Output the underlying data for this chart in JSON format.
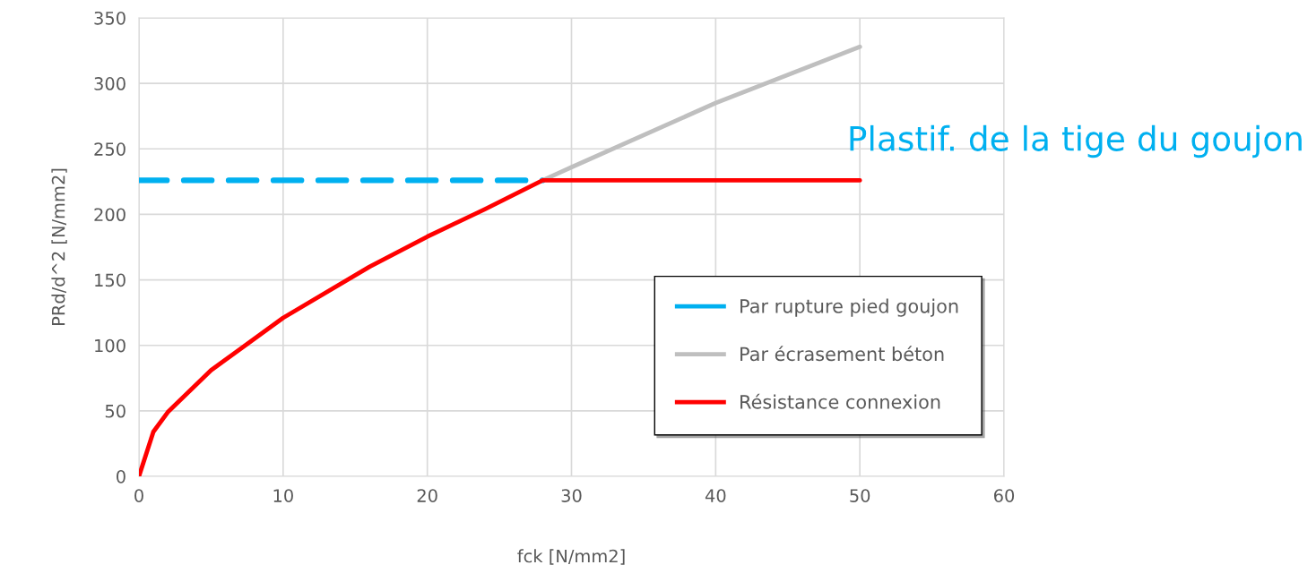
{
  "chart_data": {
    "type": "line",
    "xlabel": "fck [N/mm2]",
    "ylabel": "PRd/d^2 [N/mm2]",
    "xlim": [
      0,
      60
    ],
    "xticks": [
      0,
      10,
      20,
      30,
      40,
      50,
      60
    ],
    "ylim": [
      0,
      350
    ],
    "yticks": [
      0,
      50,
      100,
      150,
      200,
      250,
      300,
      350
    ],
    "grid": true,
    "legend": "bottom right",
    "marker": "none",
    "annotations": [
      "Plastif. de la tige du goujon"
    ],
    "series": [
      {
        "name": "Par rupture pied goujon",
        "color": "#00b0f0",
        "line_style": "dashed",
        "x": [
          0,
          28
        ],
        "values": [
          226,
          226
        ]
      },
      {
        "name": "Par écrasement béton",
        "color": "#bfbfbf",
        "line_style": "solid",
        "x": [
          28,
          30,
          40,
          50
        ],
        "values": [
          226,
          236,
          285,
          328
        ]
      },
      {
        "name": "Résistance connexion",
        "color": "#ff0000",
        "line_style": "solid",
        "x": [
          0,
          1,
          2,
          5,
          10,
          16,
          20,
          24,
          28,
          50
        ],
        "values": [
          0,
          34,
          49,
          81,
          121,
          160,
          183,
          204,
          226,
          226
        ]
      }
    ]
  }
}
